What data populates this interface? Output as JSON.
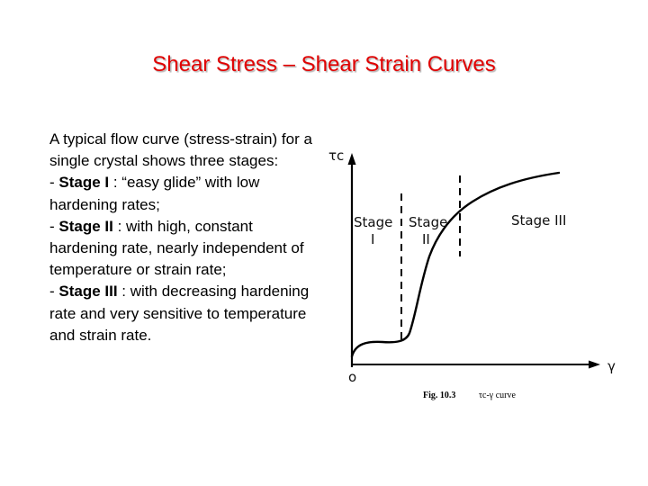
{
  "slide": {
    "title": "Shear Stress – Shear Strain Curves"
  },
  "text": {
    "intro": "A typical flow curve (stress-strain) for a single crystal shows three stages:",
    "stage1_prefix": "- ",
    "stage1_label": "Stage I",
    "stage1_desc": " : “easy glide” with low hardening rates;",
    "stage2_prefix": "- ",
    "stage2_label": "Stage II",
    "stage2_desc": " : with high, constant hardening rate, nearly independent of temperature or strain rate;",
    "stage3_prefix": "- ",
    "stage3_label": "Stage III",
    "stage3_desc": " : with decreasing hardening rate and very sensitive to temperature and strain rate."
  },
  "figure": {
    "y_axis_label": "τc",
    "x_axis_label": "γ",
    "origin_label": "o",
    "stage1_line1": "Stage",
    "stage1_line2": "I",
    "stage2_line1": "Stage",
    "stage2_line2": "II",
    "stage3_label": "Stage III",
    "caption_num": "Fig. 10.3",
    "caption_text": "τc-γ curve"
  },
  "colors": {
    "title": "#e00000",
    "text": "#000000"
  }
}
